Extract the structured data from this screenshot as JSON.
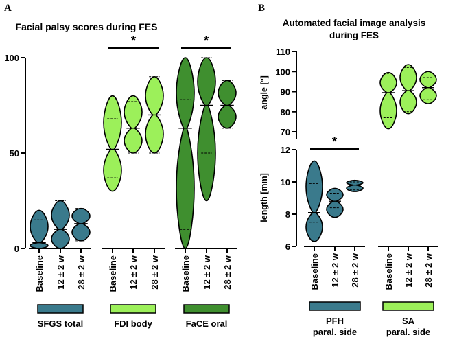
{
  "colors": {
    "teal": "#3a7a8c",
    "light_green": "#9cf05a",
    "dark_green": "#3f8f2f",
    "axis": "#000000"
  },
  "chart_data": [
    {
      "id": "A",
      "panel_label": "A",
      "type": "violin",
      "title": "Facial palsy scores during FES",
      "ylabel": "",
      "ylim": [
        0,
        100
      ],
      "yticks": [
        0,
        50,
        100
      ],
      "groups": [
        {
          "name": "SFGS total",
          "color": "teal",
          "conditions": [
            {
              "label": "Baseline",
              "min": 0,
              "max": 20,
              "q1": 0,
              "median": 3,
              "q3": 15
            },
            {
              "label": "12 ± 2 w",
              "min": 0,
              "max": 25,
              "q1": 0,
              "median": 10,
              "q3": 25
            },
            {
              "label": "28 ± 2 w",
              "min": 4,
              "max": 21,
              "q1": 4,
              "median": 13,
              "q3": 21
            }
          ]
        },
        {
          "name": "FDI body",
          "color": "light_green",
          "conditions": [
            {
              "label": "Baseline",
              "min": 30,
              "max": 80,
              "q1": 37,
              "median": 52,
              "q3": 68
            },
            {
              "label": "12 ± 2 w",
              "min": 50,
              "max": 80,
              "q1": 50,
              "median": 63,
              "q3": 77
            },
            {
              "label": "28 ± 2 w",
              "min": 50,
              "max": 90,
              "q1": 50,
              "median": 70,
              "q3": 90
            }
          ]
        },
        {
          "name": "FaCE oral",
          "color": "dark_green",
          "conditions": [
            {
              "label": "Baseline",
              "min": 0,
              "max": 100,
              "q1": 10,
              "median": 63,
              "q3": 78
            },
            {
              "label": "12 ± 2 w",
              "min": 25,
              "max": 100,
              "q1": 50,
              "median": 75,
              "q3": 100
            },
            {
              "label": "28 ± 2 w",
              "min": 63,
              "max": 88,
              "q1": 63,
              "median": 75,
              "q3": 88
            }
          ]
        }
      ],
      "annotations": [
        {
          "text": "*",
          "group": 1,
          "from": 0,
          "to": 2
        },
        {
          "text": "*",
          "group": 2,
          "from": 0,
          "to": 2
        }
      ]
    },
    {
      "id": "B",
      "panel_label": "B",
      "type": "violin",
      "title": "Automated facial image analysis during FES",
      "subplots": [
        {
          "ylabel": "angle [°]",
          "ylim": [
            67,
            110
          ],
          "yticks": [
            70,
            80,
            90,
            100,
            110
          ],
          "group_index": 1
        },
        {
          "ylabel": "length [mm]",
          "ylim": [
            6,
            12
          ],
          "yticks": [
            6,
            8,
            10,
            12
          ],
          "group_index": 0
        }
      ],
      "groups": [
        {
          "name": "PFH paral. side",
          "color": "teal",
          "subplot": "length",
          "conditions": [
            {
              "label": "Baseline",
              "min": 6.3,
              "max": 11.3,
              "q1": 7.5,
              "median": 8.1,
              "q3": 9.9
            },
            {
              "label": "12 ± 2 w",
              "min": 7.8,
              "max": 9.6,
              "q1": 8.4,
              "median": 8.8,
              "q3": 9.3
            },
            {
              "label": "28 ± 2 w",
              "min": 9.4,
              "max": 10.1,
              "q1": 9.5,
              "median": 9.8,
              "q3": 10.0
            }
          ]
        },
        {
          "name": "SA paral. side",
          "color": "light_green",
          "subplot": "angle",
          "conditions": [
            {
              "label": "Baseline",
              "min": 71.5,
              "max": 99.5,
              "q1": 77,
              "median": 89.5,
              "q3": 99
            },
            {
              "label": "12 ± 2 w",
              "min": 79,
              "max": 103.5,
              "q1": 80,
              "median": 90.5,
              "q3": 102
            },
            {
              "label": "28 ± 2 w",
              "min": 84,
              "max": 100,
              "q1": 86,
              "median": 92,
              "q3": 97
            }
          ]
        }
      ],
      "annotations": [
        {
          "text": "*",
          "group": 0,
          "from": 0,
          "to": 2
        }
      ]
    }
  ]
}
